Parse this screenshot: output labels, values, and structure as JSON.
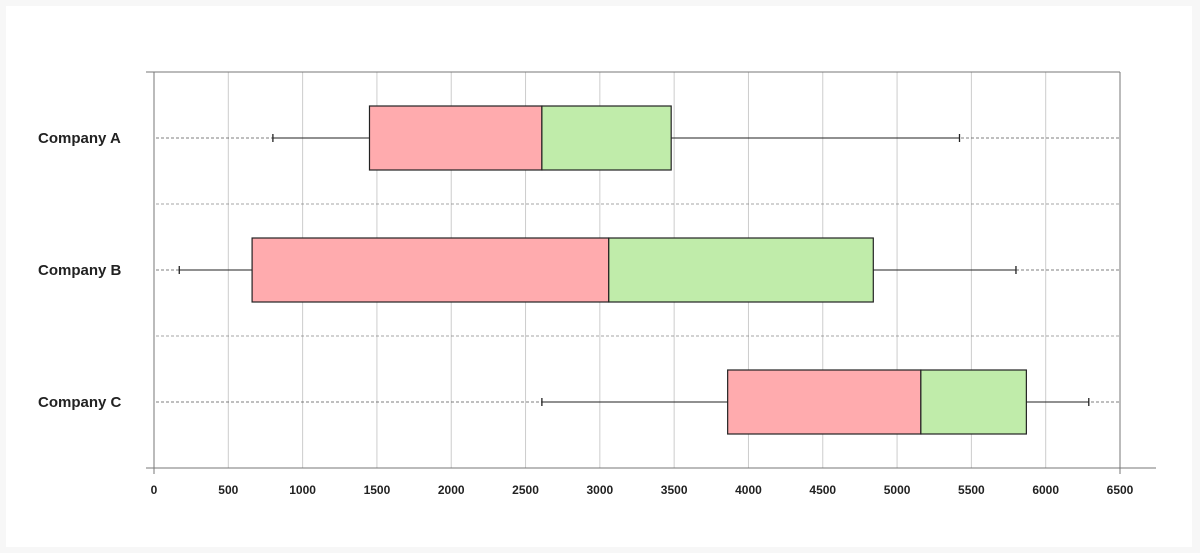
{
  "chart_data": {
    "type": "box",
    "orientation": "horizontal",
    "title": "",
    "xlabel": "",
    "ylabel": "",
    "xlim": [
      0,
      6500
    ],
    "xticks": [
      0,
      500,
      1000,
      1500,
      2000,
      2500,
      3000,
      3500,
      4000,
      4500,
      5000,
      5500,
      6000,
      6500
    ],
    "grid": true,
    "categories": [
      "Company A",
      "Company B",
      "Company C"
    ],
    "boxes": [
      {
        "label": "Company A",
        "min": 800,
        "q1": 1450,
        "median": 2610,
        "q3": 3480,
        "max": 5420
      },
      {
        "label": "Company B",
        "min": 170,
        "q1": 660,
        "median": 3060,
        "q3": 4840,
        "max": 5800
      },
      {
        "label": "Company C",
        "min": 2610,
        "q1": 3860,
        "median": 5160,
        "q3": 5870,
        "max": 6290
      }
    ],
    "colors": {
      "lower_box": "#ffabae",
      "upper_box": "#c0ecaa",
      "grid": "#cccccc",
      "axis": "#777777",
      "box_stroke": "#222222"
    }
  }
}
